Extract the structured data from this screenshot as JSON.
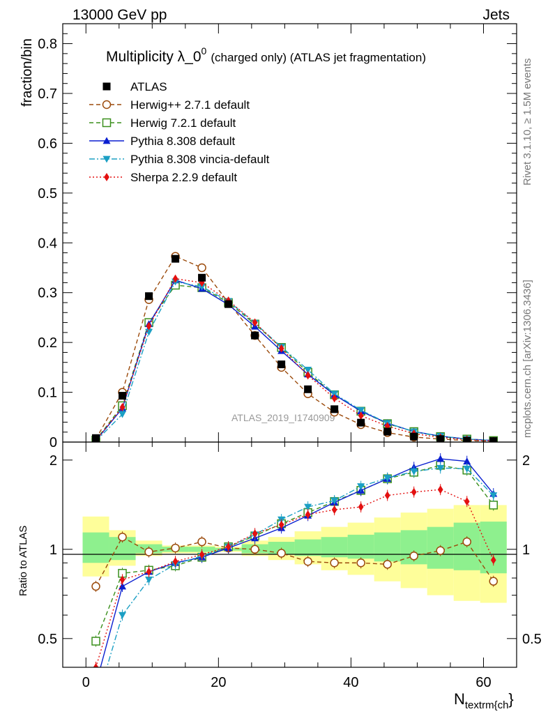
{
  "header": {
    "left": "13000 GeV pp",
    "right": "Jets"
  },
  "side_labels": {
    "rivet": "Rivet 3.1.10, ≥ 1.5M events",
    "mcplots": "mcplots.cern.ch [arXiv:1306.3436]"
  },
  "chart_data": {
    "type": "scatter",
    "title": "Multiplicity λ_0",
    "title_superscript": "0",
    "title_suffix": "(charged only) (ATLAS jet fragmentation)",
    "xlabel": "N",
    "xlabel_sub": "textrm{ch",
    "xlabel_tail": "}",
    "ylabel_main": "fraction/bin",
    "ylabel_ratio": "Ratio to ATLAS",
    "watermark": "ATLAS_2019_I1740909",
    "xlim": [
      -3.5,
      65
    ],
    "ylim_main": [
      0,
      0.84
    ],
    "ylim_ratio": [
      0.4,
      2.3
    ],
    "ratio_scale": "log",
    "x_ticks": [
      0,
      20,
      40,
      60
    ],
    "x_tick_labels": [
      "0",
      "20",
      "40",
      "60"
    ],
    "y_ticks_main": [
      0,
      0.1,
      0.2,
      0.3,
      0.4,
      0.5,
      0.6,
      0.7,
      0.8
    ],
    "y_tick_labels_main": [
      "0",
      "0.1",
      "0.2",
      "0.3",
      "0.4",
      "0.5",
      "0.6",
      "0.7",
      "0.8"
    ],
    "y_ticks_ratio": [
      0.5,
      1,
      2
    ],
    "y_tick_labels_ratio": [
      "0.5",
      "1",
      "2"
    ],
    "legend_position": "top-left",
    "x": [
      1.5,
      5.5,
      9.5,
      13.5,
      17.5,
      21.5,
      25.5,
      29.5,
      33.5,
      37.5,
      41.5,
      45.5,
      49.5,
      53.5,
      57.5,
      61.5
    ],
    "bin_edges": [
      -0.5,
      3.5,
      7.5,
      11.5,
      15.5,
      19.5,
      23.5,
      27.5,
      31.5,
      35.5,
      39.5,
      43.5,
      47.5,
      51.5,
      55.5,
      59.5,
      63.5
    ],
    "data": {
      "name": "ATLAS",
      "values": [
        0.008,
        0.093,
        0.293,
        0.368,
        0.33,
        0.277,
        0.214,
        0.156,
        0.106,
        0.066,
        0.039,
        0.021,
        0.011,
        0.006,
        0.003,
        0.002
      ]
    },
    "series": [
      {
        "name": "Herwig++ 2.7.1 default",
        "color": "#9b4a0b",
        "marker": "open-circle",
        "line": "dashed",
        "values": [
          0.006,
          0.1,
          0.286,
          0.373,
          0.35,
          0.28,
          0.214,
          0.15,
          0.097,
          0.06,
          0.035,
          0.019,
          0.01,
          0.006,
          0.003,
          0.002
        ],
        "ratio": [
          0.75,
          1.1,
          0.98,
          1.01,
          1.06,
          1.01,
          1.0,
          0.97,
          0.91,
          0.9,
          0.9,
          0.89,
          0.95,
          0.99,
          1.06,
          0.78
        ]
      },
      {
        "name": "Herwig 7.2.1 default",
        "color": "#3a8f1c",
        "marker": "open-square",
        "line": "dashed",
        "values": [
          0.004,
          0.073,
          0.24,
          0.315,
          0.31,
          0.28,
          0.237,
          0.19,
          0.14,
          0.095,
          0.062,
          0.037,
          0.021,
          0.011,
          0.006,
          0.003
        ],
        "ratio": [
          0.49,
          0.83,
          0.85,
          0.88,
          0.94,
          1.02,
          1.11,
          1.22,
          1.33,
          1.45,
          1.58,
          1.73,
          1.82,
          1.92,
          1.85,
          1.41
        ]
      },
      {
        "name": "Pythia 8.308 default",
        "color": "#0a1fd0",
        "marker": "filled-triangle-up",
        "line": "solid",
        "values": [
          0.003,
          0.068,
          0.237,
          0.325,
          0.308,
          0.276,
          0.232,
          0.183,
          0.136,
          0.095,
          0.062,
          0.038,
          0.021,
          0.012,
          0.006,
          0.003
        ],
        "ratio": [
          0.35,
          0.75,
          0.84,
          0.9,
          0.94,
          1.01,
          1.09,
          1.18,
          1.3,
          1.44,
          1.58,
          1.73,
          1.89,
          2.02,
          1.98,
          1.54
        ]
      },
      {
        "name": "Pythia 8.308 vincia-default",
        "color": "#1b9fc4",
        "marker": "filled-triangle-down",
        "line": "dashdot",
        "values": [
          0.002,
          0.056,
          0.221,
          0.322,
          0.312,
          0.283,
          0.239,
          0.191,
          0.145,
          0.097,
          0.064,
          0.038,
          0.021,
          0.012,
          0.006,
          0.003
        ],
        "ratio": [
          0.3,
          0.6,
          0.79,
          0.89,
          0.95,
          1.02,
          1.12,
          1.26,
          1.39,
          1.46,
          1.63,
          1.74,
          1.83,
          1.88,
          1.87,
          1.52
        ]
      },
      {
        "name": "Sherpa 2.2.9 default",
        "color": "#e31010",
        "marker": "filled-diamond",
        "line": "dotted",
        "values": [
          0.003,
          0.07,
          0.233,
          0.328,
          0.32,
          0.284,
          0.24,
          0.188,
          0.134,
          0.088,
          0.053,
          0.032,
          0.017,
          0.009,
          0.005,
          0.002
        ],
        "ratio": [
          0.4,
          0.79,
          0.84,
          0.91,
          0.96,
          1.02,
          1.13,
          1.21,
          1.31,
          1.36,
          1.39,
          1.52,
          1.56,
          1.59,
          1.45,
          0.92
        ]
      }
    ],
    "ratio_bands": {
      "stat_lower": [
        0.9,
        0.92,
        0.97,
        0.98,
        0.98,
        0.99,
        0.97,
        0.96,
        0.95,
        0.94,
        0.93,
        0.91,
        0.89,
        0.86,
        0.85,
        0.83
      ],
      "stat_upper": [
        1.14,
        1.1,
        1.04,
        1.02,
        1.02,
        1.01,
        1.04,
        1.06,
        1.08,
        1.1,
        1.12,
        1.14,
        1.16,
        1.19,
        1.23,
        1.24
      ],
      "total_lower": [
        0.81,
        0.88,
        0.95,
        0.97,
        0.97,
        0.98,
        0.95,
        0.92,
        0.89,
        0.85,
        0.82,
        0.78,
        0.74,
        0.7,
        0.67,
        0.66
      ],
      "total_upper": [
        1.29,
        1.16,
        1.07,
        1.03,
        1.03,
        1.02,
        1.07,
        1.1,
        1.15,
        1.19,
        1.23,
        1.28,
        1.33,
        1.37,
        1.41,
        1.41
      ],
      "stat_color": "#8ef08e",
      "total_color": "#fefe9a"
    }
  }
}
